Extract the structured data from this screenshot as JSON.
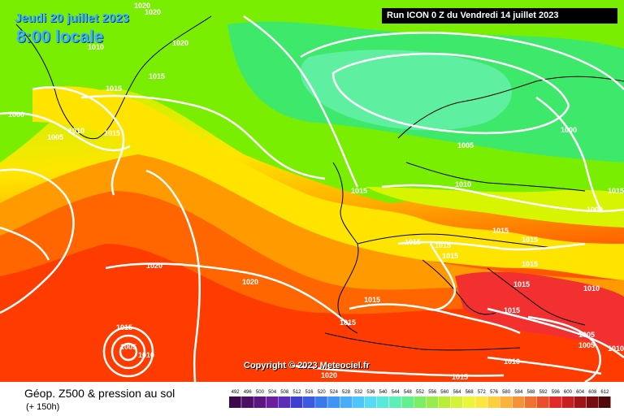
{
  "header": {
    "date": "Jeudi 20 juillet 2023",
    "time": "8:00 locale",
    "run": "Run ICON 0 Z du Vendredi 14 juillet 2023"
  },
  "copyright": "Copyright © 2023 Meteociel.fr",
  "legend": {
    "title": "Géop. Z500 & pression au sol",
    "subtitle": "(+ 150h)",
    "scale_values": [
      "492",
      "496",
      "500",
      "504",
      "508",
      "512",
      "516",
      "520",
      "524",
      "528",
      "532",
      "536",
      "540",
      "544",
      "548",
      "552",
      "556",
      "560",
      "564",
      "568",
      "572",
      "576",
      "580",
      "584",
      "588",
      "592",
      "596",
      "600",
      "604",
      "608",
      "612"
    ],
    "scale_colors": [
      "#3a0a4a",
      "#4b0f63",
      "#5c1680",
      "#6b1f9c",
      "#5a2eb8",
      "#4040d0",
      "#3a5ae0",
      "#3a78ee",
      "#3f94f5",
      "#46aefa",
      "#4ec6fb",
      "#56dbf5",
      "#5ae8dc",
      "#5cefb6",
      "#62f08c",
      "#7cee66",
      "#9aec4c",
      "#b8ee3a",
      "#d4f23a",
      "#ecf43c",
      "#fbe642",
      "#fdcf3e",
      "#fbb23a",
      "#f79236",
      "#f27030",
      "#ec4e2c",
      "#e02a28",
      "#c81e22",
      "#a01418",
      "#780c10",
      "#500808"
    ]
  },
  "isobar_labels": [
    "1020",
    "1020",
    "1020",
    "1010",
    "1015",
    "1015",
    "1000",
    "1010",
    "1015",
    "1005",
    "1015",
    "1005",
    "1000",
    "1010",
    "1015",
    "1015",
    "1000",
    "1015",
    "1015",
    "1015",
    "1015",
    "1015",
    "1020",
    "1020",
    "1015",
    "1015",
    "1015",
    "1010",
    "1005",
    "1015",
    "1005",
    "1010",
    "1010",
    "1005",
    "1010",
    "1015",
    "1020"
  ]
}
